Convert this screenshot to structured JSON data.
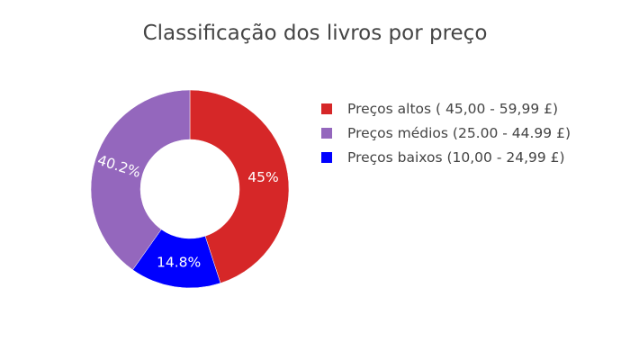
{
  "chart_data": {
    "type": "pie",
    "title": "Classificação dos livros por preço",
    "hole": 0.5,
    "categories": [
      "Preços altos ( 45,00 - 59,99 £)",
      "Preços médios (25.00 - 44.99 £)",
      "Preços baixos (10,00 - 24,99 £)"
    ],
    "values": [
      45.0,
      40.2,
      14.8
    ],
    "slice_labels": [
      "45%",
      "40.2%",
      "14.8%"
    ],
    "colors": [
      "#d62728",
      "#9467bd",
      "#0000ff"
    ],
    "slice_order": [
      0,
      2,
      1
    ],
    "legend_position": "right"
  }
}
